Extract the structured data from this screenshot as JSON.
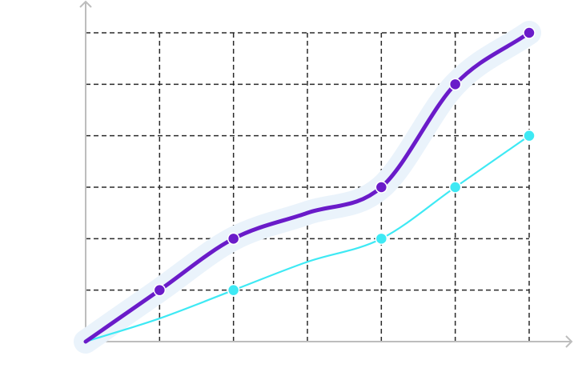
{
  "chart_data": {
    "type": "line",
    "title": "",
    "xlabel": "",
    "ylabel": "",
    "x": [
      0,
      1,
      2,
      3,
      4,
      5,
      6
    ],
    "xlim": [
      0,
      6
    ],
    "ylim": [
      0,
      6
    ],
    "grid": true,
    "legend": "none",
    "series": [
      {
        "values": [
          0,
          1,
          2,
          2.5,
          3,
          5,
          6
        ],
        "marker_indices": [
          1,
          2,
          4,
          5,
          6
        ],
        "color": "#6a1bc9",
        "halo_color": "#eaf3fb",
        "emphasis": "bold"
      },
      {
        "values": [
          0,
          0.45,
          1,
          1.55,
          2,
          3,
          4
        ],
        "marker_indices": [
          2,
          4,
          5,
          6
        ],
        "color": "#3ee9f4",
        "emphasis": "thin"
      }
    ]
  },
  "colors": {
    "axis": "#bdbdbd",
    "grid": "#2a2a2a",
    "background": "#ffffff"
  }
}
